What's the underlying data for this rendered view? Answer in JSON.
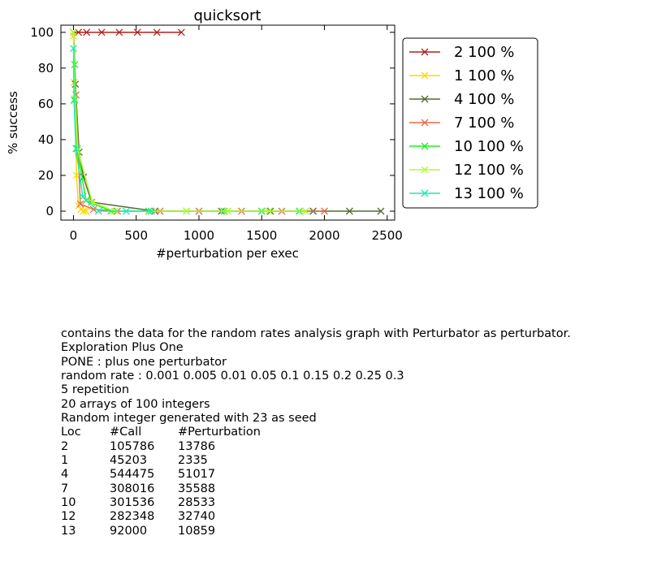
{
  "chart_data": {
    "type": "line",
    "title": "quicksort",
    "xlabel": "#perturbation per exec",
    "ylabel": "% success",
    "xlim": [
      -100,
      2560
    ],
    "ylim": [
      -5,
      104
    ],
    "xticks": [
      0,
      500,
      1000,
      1500,
      2000,
      2500
    ],
    "xtick_labels": [
      "0",
      "500",
      "1000",
      "1500",
      "2000",
      "2500"
    ],
    "yticks": [
      0,
      20,
      40,
      60,
      80,
      100
    ],
    "ytick_labels": [
      "0",
      "20",
      "40",
      "60",
      "80",
      "100"
    ],
    "grid": false,
    "legend_position": "outside right",
    "marker": "x",
    "series": [
      {
        "name": "2 100 %",
        "color": "#b22222",
        "x": [
          0,
          40,
          105,
          225,
          365,
          510,
          665,
          860
        ],
        "y": [
          100,
          100,
          100,
          100,
          100,
          100,
          100,
          100
        ]
      },
      {
        "name": "1 100 %",
        "color": "#ffd700",
        "x": [
          0,
          5,
          12,
          24,
          40,
          60,
          80,
          100
        ],
        "y": [
          98,
          72,
          62,
          20,
          3,
          1,
          0,
          0
        ]
      },
      {
        "name": "4 100 %",
        "color": "#556b2f",
        "x": [
          0,
          15,
          45,
          80,
          145,
          650,
          1180,
          1570,
          1910,
          2200,
          2450
        ],
        "y": [
          100,
          71,
          33,
          19,
          5,
          0,
          0,
          0,
          0,
          0,
          0
        ]
      },
      {
        "name": "7 100 %",
        "color": "#e9694c",
        "x": [
          0,
          20,
          55,
          160,
          350,
          690,
          1000,
          1340,
          1660,
          2000
        ],
        "y": [
          100,
          65,
          4,
          1,
          0,
          0,
          0,
          0,
          0,
          0
        ]
      },
      {
        "name": "10 100 %",
        "color": "#22ee22",
        "x": [
          0,
          10,
          30,
          100,
          300,
          600,
          900,
          1200,
          1500,
          1800
        ],
        "y": [
          100,
          82,
          35,
          6,
          0,
          0,
          0,
          0,
          0,
          0
        ]
      },
      {
        "name": "12 100 %",
        "color": "#adff2f",
        "x": [
          0,
          10,
          35,
          150,
          330,
          620,
          900,
          1230,
          1560,
          1850
        ],
        "y": [
          100,
          63,
          34,
          5,
          0,
          0,
          0,
          0,
          0,
          0
        ]
      },
      {
        "name": "13 100 %",
        "color": "#1de9b6",
        "x": [
          0,
          5,
          20,
          75,
          200,
          420,
          620
        ],
        "y": [
          91,
          62,
          35,
          8,
          0,
          0,
          0
        ]
      }
    ]
  },
  "description": {
    "lines": [
      "contains the data for the random rates analysis graph with Perturbator as perturbator.",
      "Exploration Plus One",
      "PONE : plus one perturbator",
      "random rate : 0.001 0.005 0.01 0.05 0.1 0.15 0.2 0.25 0.3",
      "5 repetition",
      "20 arrays of 100 integers",
      "Random integer generated with 23 as seed"
    ],
    "table_header": [
      "Loc",
      "#Call",
      "#Perturbation"
    ],
    "table_rows": [
      [
        "2",
        "105786",
        "13786"
      ],
      [
        "1",
        "45203",
        "2335"
      ],
      [
        "4",
        "544475",
        "51017"
      ],
      [
        "7",
        "308016",
        "35588"
      ],
      [
        "10",
        "301536",
        "28533"
      ],
      [
        "12",
        "282348",
        "32740"
      ],
      [
        "13",
        "92000",
        "10859"
      ]
    ]
  }
}
